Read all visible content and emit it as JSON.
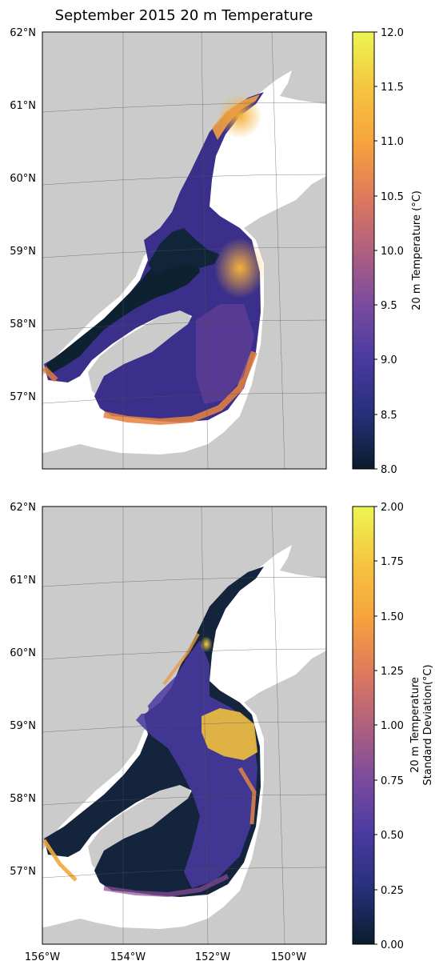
{
  "title": "September 2015 20 m Temperature",
  "maps": {
    "lat_labels": [
      "62°N",
      "61°N",
      "60°N",
      "59°N",
      "58°N",
      "57°N"
    ],
    "lon_labels": [
      "156°W",
      "154°W",
      "152°W",
      "150°W"
    ]
  },
  "colorbars": [
    {
      "label": "20 m Temperature (°C)",
      "ticks": [
        "8.0",
        "8.5",
        "9.0",
        "9.5",
        "10.0",
        "10.5",
        "11.0",
        "11.5",
        "12.0"
      ],
      "range": [
        8.0,
        12.0
      ]
    },
    {
      "label_line1": "20 m Temperature",
      "label_line2": "Standard Deviation(°C)",
      "ticks": [
        "0.00",
        "0.25",
        "0.50",
        "0.75",
        "1.00",
        "1.25",
        "1.50",
        "1.75",
        "2.00"
      ],
      "range": [
        0.0,
        2.0
      ]
    }
  ],
  "colors": {
    "land": "#cbcbcb",
    "ocean_bg": "#ffffff",
    "cmap": [
      "#0a1c2c",
      "#26307a",
      "#4a3aa0",
      "#7a4b9e",
      "#b0607f",
      "#e07a5c",
      "#f6a43c",
      "#f5c640",
      "#ecf652"
    ]
  }
}
